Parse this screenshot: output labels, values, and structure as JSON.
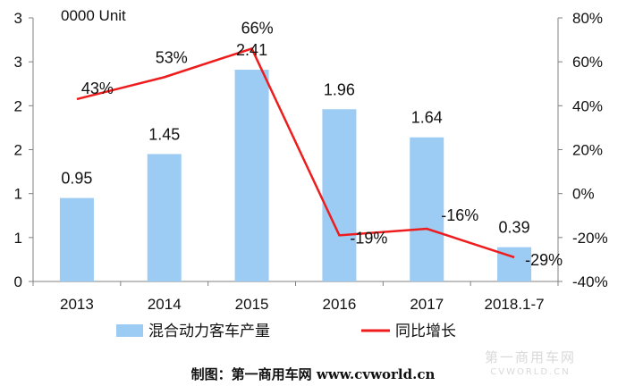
{
  "chart_data": {
    "type": "bar",
    "unit_label": "0000 Unit",
    "categories": [
      "2013",
      "2014",
      "2015",
      "2016",
      "2017",
      "2018.1-7"
    ],
    "y_left_ticks": [
      "0",
      "1",
      "1",
      "2",
      "2",
      "3",
      "3"
    ],
    "y_left_range": [
      0,
      3
    ],
    "y_right_ticks": [
      "-40%",
      "-20%",
      "0%",
      "20%",
      "40%",
      "60%",
      "80%"
    ],
    "y_right_range": [
      -40,
      80
    ],
    "series": [
      {
        "name": "混合动力客车产量",
        "type": "bar",
        "axis": "left",
        "color": "#9ccbf3",
        "values": [
          0.95,
          1.45,
          2.41,
          1.96,
          1.64,
          0.39
        ],
        "labels": [
          "0.95",
          "1.45",
          "2.41",
          "1.96",
          "1.64",
          "0.39"
        ]
      },
      {
        "name": "同比增长",
        "type": "line",
        "axis": "right",
        "color": "#ee1c1c",
        "values": [
          43,
          53,
          66,
          -19,
          -16,
          -29
        ],
        "labels": [
          "43%",
          "53%",
          "66%",
          "-19%",
          "-16%",
          "-29%"
        ]
      }
    ],
    "grid": false,
    "legend_position": "bottom"
  },
  "credit": "制图：第一商用车网 www.cvworld.cn",
  "watermark": {
    "main": "第一商用车网",
    "sub": "CVWORLD.CN"
  }
}
